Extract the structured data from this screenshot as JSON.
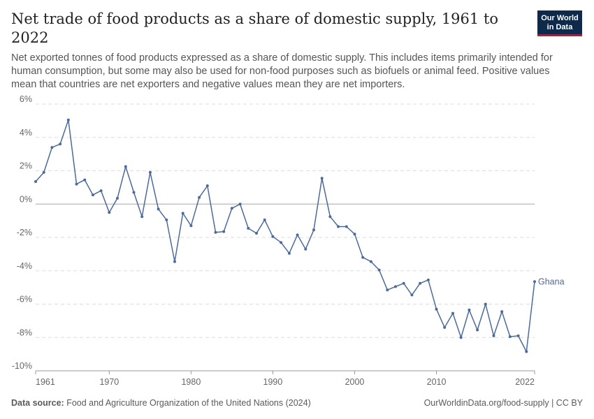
{
  "header": {
    "title": "Net trade of food products as a share of domestic supply, 1961 to 2022",
    "subtitle": "Net exported tonnes of food products expressed as a share of domestic supply. This includes items primarily intended for human consumption, but some may also be used for non-food purposes such as biofuels or animal feed. Positive values mean that countries are net exporters and negative values mean they are net importers.",
    "logo_line1": "Our World",
    "logo_line2": "in Data"
  },
  "footer": {
    "source_label": "Data source:",
    "source_text": "Food and Agriculture Organization of the United Nations (2024)",
    "right_text": "OurWorldinData.org/food-supply | CC BY"
  },
  "colors": {
    "line": "#4c6a9c",
    "grid": "#dddddd",
    "zero_line": "#b8b8b8",
    "axis": "#666666"
  },
  "chart_data": {
    "type": "line",
    "title": "Net trade of food products as a share of domestic supply, 1961 to 2022",
    "xlabel": "",
    "ylabel": "",
    "xlim": [
      1961,
      2022
    ],
    "ylim": [
      -10,
      6
    ],
    "y_ticks": [
      -10,
      -8,
      -6,
      -4,
      -2,
      0,
      2,
      4,
      6
    ],
    "y_tick_labels": [
      "-10%",
      "-8%",
      "-6%",
      "-4%",
      "-2%",
      "0%",
      "2%",
      "4%",
      "6%"
    ],
    "x_ticks": [
      1961,
      1970,
      1980,
      1990,
      2000,
      2010,
      2022
    ],
    "x_tick_labels": [
      "1961",
      "1970",
      "1980",
      "1990",
      "2000",
      "2010",
      "2022"
    ],
    "grid": "horizontal dashed",
    "series": [
      {
        "name": "Ghana",
        "x": [
          1961,
          1962,
          1963,
          1964,
          1965,
          1966,
          1967,
          1968,
          1969,
          1970,
          1971,
          1972,
          1973,
          1974,
          1975,
          1976,
          1977,
          1978,
          1979,
          1980,
          1981,
          1982,
          1983,
          1984,
          1985,
          1986,
          1987,
          1988,
          1989,
          1990,
          1991,
          1992,
          1993,
          1994,
          1995,
          1996,
          1997,
          1998,
          1999,
          2000,
          2001,
          2002,
          2003,
          2004,
          2005,
          2006,
          2007,
          2008,
          2009,
          2010,
          2011,
          2012,
          2013,
          2014,
          2015,
          2016,
          2017,
          2018,
          2019,
          2020,
          2021,
          2022
        ],
        "values": [
          1.35,
          1.9,
          3.4,
          3.6,
          5.05,
          1.2,
          1.45,
          0.55,
          0.8,
          -0.5,
          0.35,
          2.25,
          0.7,
          -0.75,
          1.9,
          -0.3,
          -0.95,
          -3.45,
          -0.55,
          -1.3,
          0.4,
          1.1,
          -1.7,
          -1.65,
          -0.25,
          0.0,
          -1.45,
          -1.75,
          -0.95,
          -1.95,
          -2.3,
          -2.95,
          -1.85,
          -2.7,
          -1.55,
          1.55,
          -0.75,
          -1.35,
          -1.35,
          -1.8,
          -3.2,
          -3.45,
          -3.95,
          -5.15,
          -4.95,
          -4.75,
          -5.45,
          -4.75,
          -4.55,
          -6.3,
          -7.4,
          -6.55,
          -8.0,
          -6.35,
          -7.55,
          -6.0,
          -7.9,
          -6.45,
          -7.95,
          -7.9,
          -8.85,
          -4.65
        ]
      }
    ]
  }
}
